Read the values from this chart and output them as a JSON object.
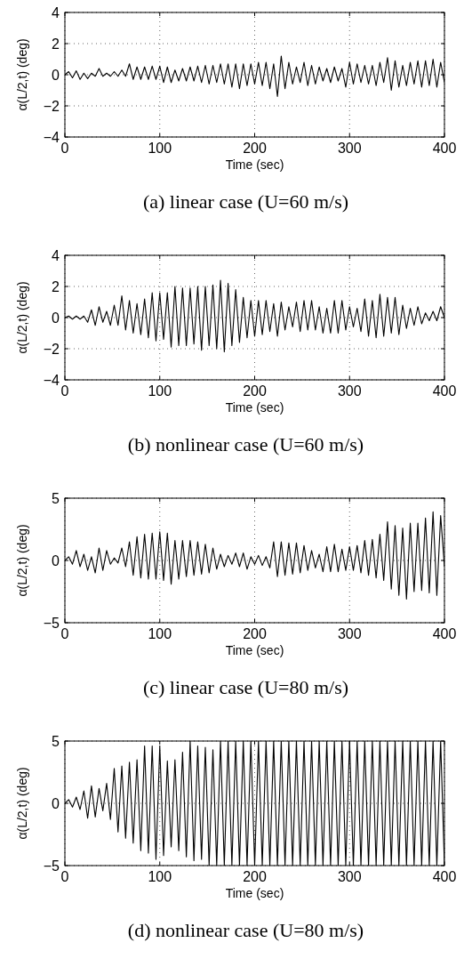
{
  "chart_data": [
    {
      "type": "line",
      "title": "(a) linear case (U=60 m/s)",
      "xlabel": "Time (sec)",
      "ylabel": "α(L/2,t) (deg)",
      "xlim": [
        0,
        400
      ],
      "xticks": [
        0,
        100,
        200,
        300,
        400
      ],
      "ylim": [
        -4,
        4
      ],
      "yticks": [
        -4,
        -2,
        0,
        2,
        4
      ],
      "grid": true,
      "x": [
        0,
        4,
        8,
        12,
        16,
        20,
        24,
        28,
        32,
        36,
        40,
        44,
        48,
        52,
        56,
        60,
        64,
        68,
        72,
        76,
        80,
        84,
        88,
        92,
        96,
        100,
        104,
        108,
        112,
        116,
        120,
        124,
        128,
        132,
        136,
        140,
        144,
        148,
        152,
        156,
        160,
        164,
        168,
        172,
        176,
        180,
        184,
        188,
        192,
        196,
        200,
        204,
        208,
        212,
        216,
        220,
        224,
        228,
        232,
        236,
        240,
        244,
        248,
        252,
        256,
        260,
        264,
        268,
        272,
        276,
        280,
        284,
        288,
        292,
        296,
        300,
        304,
        308,
        312,
        316,
        320,
        324,
        328,
        332,
        336,
        340,
        344,
        348,
        352,
        356,
        360,
        364,
        368,
        372,
        376,
        380,
        384,
        388,
        392,
        396,
        400
      ],
      "series": [
        {
          "color": "#000000",
          "values": [
            0,
            0.2,
            -0.2,
            0.25,
            -0.3,
            0.1,
            -0.25,
            0.1,
            -0.1,
            0.4,
            -0.1,
            0.1,
            -0.1,
            0.2,
            -0.1,
            0.3,
            -0.1,
            0.7,
            -0.3,
            0.5,
            -0.3,
            0.5,
            -0.3,
            0.55,
            -0.3,
            0.55,
            -0.5,
            0.5,
            -0.5,
            0.3,
            -0.4,
            0.4,
            -0.4,
            0.5,
            -0.4,
            0.55,
            -0.5,
            0.6,
            -0.6,
            0.6,
            -0.5,
            0.7,
            -0.6,
            0.7,
            -0.8,
            0.7,
            -0.9,
            0.7,
            -0.7,
            0.7,
            -0.6,
            0.8,
            -0.7,
            0.8,
            -0.9,
            0.7,
            -1.4,
            1.2,
            -0.9,
            0.8,
            -0.6,
            0.5,
            -0.5,
            0.8,
            -0.7,
            0.6,
            -0.6,
            0.5,
            -0.4,
            0.4,
            -0.5,
            0.5,
            -0.4,
            0.4,
            -0.8,
            0.8,
            -0.6,
            0.7,
            -0.5,
            0.6,
            -0.6,
            0.6,
            -0.7,
            0.8,
            -0.5,
            1.1,
            -1,
            0.9,
            -0.8,
            0.6,
            -0.7,
            0.8,
            -0.6,
            0.9,
            -0.8,
            0.9,
            -0.7,
            1,
            -0.8,
            0.8,
            -0.5
          ]
        }
      ]
    },
    {
      "type": "line",
      "title": "(b) nonlinear case (U=60 m/s)",
      "xlabel": "Time (sec)",
      "ylabel": "α(L/2,t) (deg)",
      "xlim": [
        0,
        400
      ],
      "xticks": [
        0,
        100,
        200,
        300,
        400
      ],
      "ylim": [
        -4,
        4
      ],
      "yticks": [
        -4,
        -2,
        0,
        2,
        4
      ],
      "grid": true,
      "x": [
        0,
        4,
        8,
        12,
        16,
        20,
        24,
        28,
        32,
        36,
        40,
        44,
        48,
        52,
        56,
        60,
        64,
        68,
        72,
        76,
        80,
        84,
        88,
        92,
        96,
        100,
        104,
        108,
        112,
        116,
        120,
        124,
        128,
        132,
        136,
        140,
        144,
        148,
        152,
        156,
        160,
        164,
        168,
        172,
        176,
        180,
        184,
        188,
        192,
        196,
        200,
        204,
        208,
        212,
        216,
        220,
        224,
        228,
        232,
        236,
        240,
        244,
        248,
        252,
        256,
        260,
        264,
        268,
        272,
        276,
        280,
        284,
        288,
        292,
        296,
        300,
        304,
        308,
        312,
        316,
        320,
        324,
        328,
        332,
        336,
        340,
        344,
        348,
        352,
        356,
        360,
        364,
        368,
        372,
        376,
        380,
        384,
        388,
        392,
        396,
        400
      ],
      "series": [
        {
          "color": "#000000",
          "values": [
            0,
            0.1,
            -0.1,
            0.1,
            -0.1,
            0.1,
            -0.3,
            0.5,
            -0.5,
            0.7,
            -0.3,
            0.4,
            -0.5,
            0.8,
            -0.5,
            1.4,
            -0.8,
            1.1,
            -1,
            0.9,
            -1.1,
            1.2,
            -1.3,
            1.6,
            -1.5,
            1.6,
            -1.4,
            1.6,
            -1.9,
            2,
            -1.8,
            1.9,
            -1.8,
            1.9,
            -1.7,
            2,
            -2.1,
            2,
            -1.8,
            2.1,
            -2,
            2.4,
            -2.2,
            2.2,
            -1.8,
            1.8,
            -1.6,
            1.3,
            -1.3,
            1.1,
            -1.2,
            1.1,
            -1.1,
            1.1,
            -0.9,
            0.9,
            -1.2,
            1,
            -0.8,
            0.7,
            -0.6,
            1,
            -0.9,
            1.1,
            -0.8,
            1.1,
            -0.8,
            0.7,
            -1,
            0.6,
            -1,
            1.1,
            -1,
            1.1,
            -0.8,
            0.7,
            -0.6,
            0.6,
            -0.9,
            1.2,
            -1.2,
            1.1,
            -1.3,
            1.5,
            -1.2,
            1.3,
            -1,
            1.3,
            -1.1,
            0.8,
            -0.7,
            0.6,
            -0.5,
            0.7,
            -0.4,
            0.3,
            -0.2,
            0.4,
            -0.2,
            0.7,
            0
          ]
        }
      ]
    },
    {
      "type": "line",
      "title": "(c) linear case (U=80 m/s)",
      "xlabel": "Time (sec)",
      "ylabel": "α(L/2,t) (deg)",
      "xlim": [
        0,
        400
      ],
      "xticks": [
        0,
        100,
        200,
        300,
        400
      ],
      "ylim": [
        -5,
        5
      ],
      "yticks": [
        -5,
        0,
        5
      ],
      "grid": true,
      "x": [
        0,
        4,
        8,
        12,
        16,
        20,
        24,
        28,
        32,
        36,
        40,
        44,
        48,
        52,
        56,
        60,
        64,
        68,
        72,
        76,
        80,
        84,
        88,
        92,
        96,
        100,
        104,
        108,
        112,
        116,
        120,
        124,
        128,
        132,
        136,
        140,
        144,
        148,
        152,
        156,
        160,
        164,
        168,
        172,
        176,
        180,
        184,
        188,
        192,
        196,
        200,
        204,
        208,
        212,
        216,
        220,
        224,
        228,
        232,
        236,
        240,
        244,
        248,
        252,
        256,
        260,
        264,
        268,
        272,
        276,
        280,
        284,
        288,
        292,
        296,
        300,
        304,
        308,
        312,
        316,
        320,
        324,
        328,
        332,
        336,
        340,
        344,
        348,
        352,
        356,
        360,
        364,
        368,
        372,
        376,
        380,
        384,
        388,
        392,
        396,
        400
      ],
      "series": [
        {
          "color": "#000000",
          "values": [
            0,
            0.3,
            -0.3,
            0.8,
            -0.5,
            0.5,
            -0.8,
            0.3,
            -1,
            1,
            -0.8,
            0.8,
            -0.3,
            0.2,
            -0.2,
            1,
            -0.5,
            1.5,
            -1.2,
            1.9,
            -1.4,
            2.1,
            -1.5,
            2.2,
            -1.5,
            2.3,
            -1.6,
            2.2,
            -1.9,
            1.6,
            -1.5,
            1.6,
            -1.3,
            1.6,
            -1.2,
            1.5,
            -1.1,
            1.3,
            -1,
            1,
            -0.7,
            0.5,
            -0.5,
            0.4,
            -0.3,
            0.6,
            -0.5,
            0.6,
            -0.7,
            0.3,
            -0.3,
            0.4,
            -0.4,
            0.3,
            -0.6,
            1.5,
            -1.3,
            1.5,
            -1.2,
            1.4,
            -1.1,
            1.4,
            -1,
            1.2,
            -0.8,
            0.8,
            -0.6,
            0.5,
            -0.9,
            1.1,
            -0.9,
            1.3,
            -0.9,
            0.9,
            -0.8,
            1.1,
            -0.8,
            1.2,
            -1,
            1.6,
            -1.2,
            1.7,
            -1.4,
            2.1,
            -1.6,
            3.1,
            -2.3,
            2.8,
            -2.8,
            2.6,
            -3.1,
            3,
            -2.5,
            3,
            -2.4,
            3.4,
            -2.6,
            3.9,
            -2.8,
            3.6,
            -0.5
          ]
        }
      ]
    },
    {
      "type": "line",
      "title": "(d) nonlinear case (U=80 m/s)",
      "xlabel": "Time (sec)",
      "ylabel": "α(L/2,t) (deg)",
      "xlim": [
        0,
        400
      ],
      "xticks": [
        0,
        100,
        200,
        300,
        400
      ],
      "ylim": [
        -5,
        5
      ],
      "yticks": [
        -5,
        0,
        5
      ],
      "grid": true,
      "x": [
        0,
        4,
        8,
        12,
        16,
        20,
        24,
        28,
        32,
        36,
        40,
        44,
        48,
        52,
        56,
        60,
        64,
        68,
        72,
        76,
        80,
        84,
        88,
        92,
        96,
        100,
        104,
        108,
        112,
        116,
        120,
        124,
        128,
        132,
        136,
        140,
        144,
        148,
        152,
        156,
        160,
        164,
        168,
        172,
        176,
        180,
        184,
        188,
        192,
        196,
        200,
        204,
        208,
        212,
        216,
        220,
        224,
        228,
        232,
        236,
        240,
        244,
        248,
        252,
        256,
        260,
        264,
        268,
        272,
        276,
        280,
        284,
        288,
        292,
        296,
        300,
        304,
        308,
        312,
        316,
        320,
        324,
        328,
        332,
        336,
        340,
        344,
        348,
        352,
        356,
        360,
        364,
        368,
        372,
        376,
        380,
        384,
        388,
        392,
        396,
        400
      ],
      "series": [
        {
          "color": "#000000",
          "values": [
            0,
            0.3,
            -0.3,
            0.5,
            -0.5,
            1,
            -1.2,
            1.4,
            -1.1,
            1.2,
            -0.6,
            1.6,
            -1.3,
            2.8,
            -2.3,
            3,
            -2.8,
            3.3,
            -3.2,
            3.5,
            -3.8,
            4.6,
            -4,
            4.6,
            -4.5,
            4.6,
            -4.2,
            3.4,
            -3.5,
            3.5,
            -3.8,
            4.1,
            -4.3,
            5,
            -4.6,
            4.6,
            -4.5,
            4.5,
            -5,
            4.3,
            -5,
            5,
            -5,
            5,
            -5,
            5,
            -5,
            5,
            -5,
            5,
            -5,
            5,
            -5,
            5,
            -5,
            5,
            -5,
            5,
            -5,
            5,
            -5,
            5,
            -5,
            5,
            -5,
            5,
            -5,
            5,
            -5,
            5,
            -5,
            5,
            -5,
            5,
            -5,
            5,
            -5,
            5,
            -5,
            5,
            -5,
            5,
            -5,
            5,
            -5,
            5,
            -5,
            5,
            -5,
            5,
            -5,
            5,
            -5,
            5,
            -5,
            5,
            -5,
            5,
            -5,
            5,
            -5
          ]
        }
      ]
    }
  ]
}
